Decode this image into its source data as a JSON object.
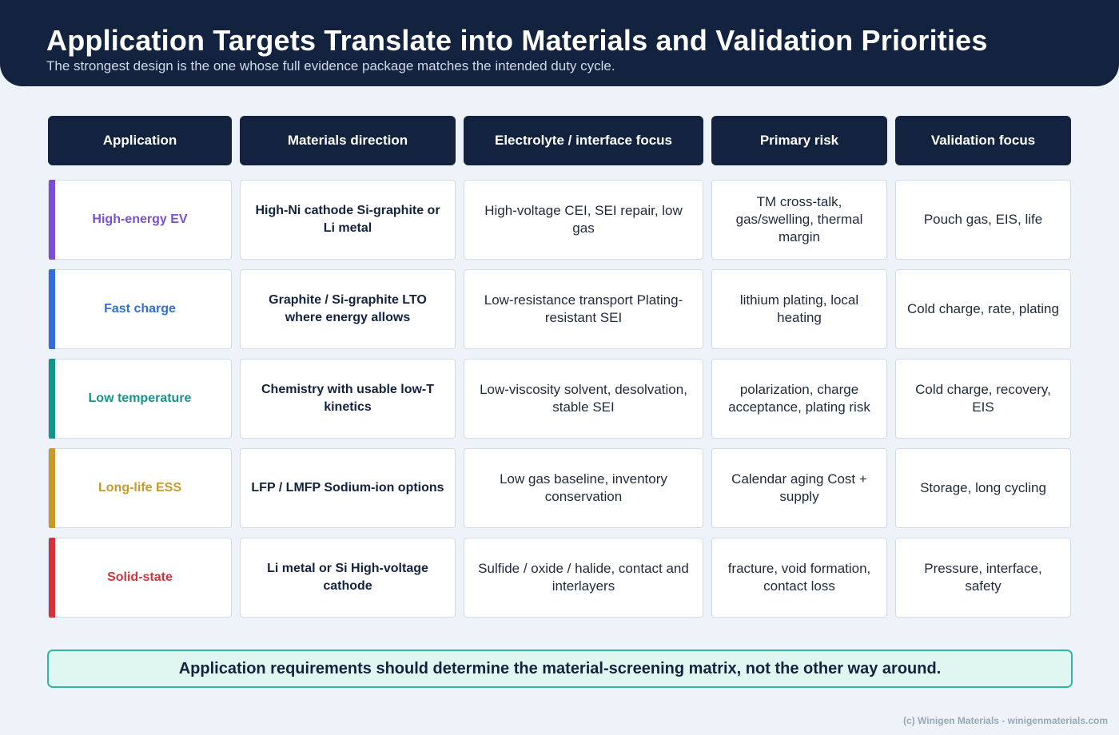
{
  "header": {
    "title": "Application Targets Translate into Materials and Validation Priorities",
    "subtitle": "The strongest design is the one whose full evidence package matches the intended duty cycle."
  },
  "table": {
    "columns": [
      "Application",
      "Materials direction",
      "Electrolyte / interface focus",
      "Primary risk",
      "Validation focus"
    ],
    "rows": [
      {
        "application": "High-energy EV",
        "accent": "#7b4fcf",
        "materials": "High-Ni cathode Si-graphite or Li metal",
        "electrolyte": "High-voltage CEI, SEI repair, low gas",
        "risk": "TM cross-talk, gas/swelling, thermal margin",
        "validation": "Pouch gas, EIS, life"
      },
      {
        "application": "Fast charge",
        "accent": "#2f6fd6",
        "materials": "Graphite / Si-graphite LTO where energy allows",
        "electrolyte": "Low-resistance transport Plating-resistant SEI",
        "risk": "lithium plating, local heating",
        "validation": "Cold charge, rate, plating"
      },
      {
        "application": "Low temperature",
        "accent": "#13958a",
        "materials": "Chemistry with usable low-T kinetics",
        "electrolyte": "Low-viscosity solvent, desolvation, stable SEI",
        "risk": "polarization, charge acceptance, plating risk",
        "validation": "Cold charge, recovery, EIS"
      },
      {
        "application": "Long-life ESS",
        "accent": "#c9992a",
        "materials": "LFP / LMFP Sodium-ion options",
        "electrolyte": "Low gas baseline, inventory conservation",
        "risk": "Calendar aging Cost + supply",
        "validation": "Storage, long cycling"
      },
      {
        "application": "Solid-state",
        "accent": "#d3343b",
        "materials": "Li metal or Si High-voltage cathode",
        "electrolyte": "Sulfide / oxide / halide, contact and interlayers",
        "risk": "fracture, void formation, contact loss",
        "validation": "Pressure, interface, safety"
      }
    ]
  },
  "footer": {
    "message": "Application requirements should determine the material-screening matrix, not the other way around.",
    "credit": "(c) Winigen Materials - winigenmaterials.com"
  }
}
